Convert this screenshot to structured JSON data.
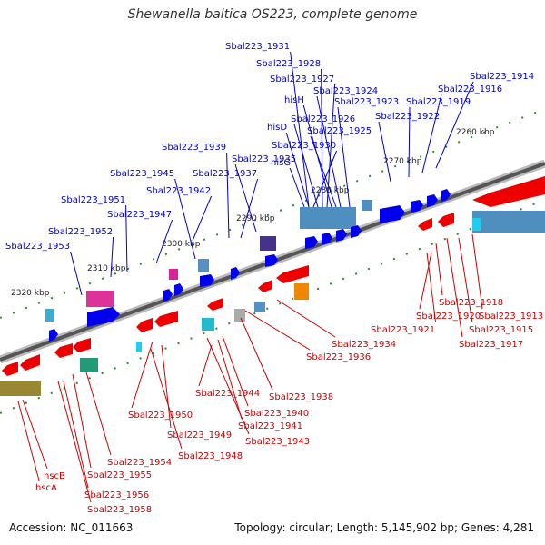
{
  "title": "Shewanella baltica OS223, complete genome",
  "footer": {
    "accession": "Accession: NC_011663",
    "summary": "Topology: circular; Length: 5,145,902 bp; Genes: 4,281"
  },
  "scale_labels": [
    "2260 kbp",
    "2270 kbp",
    "2280 kbp",
    "2290 kbp",
    "2300 kbp",
    "2310 kbp",
    "2320 kbp"
  ],
  "colors": {
    "forward_label": "#0000cc",
    "reverse_label": "#cc0000",
    "forward_gene": "#0000ee",
    "reverse_gene": "#ee0000",
    "backbone": "#555555",
    "tick": "#338833"
  },
  "forward_genes": [
    "Sbal223_1931",
    "Sbal223_1928",
    "Sbal223_1927",
    "hisH",
    "Sbal223_1924",
    "Sbal223_1923",
    "Sbal223_1926",
    "hisD",
    "Sbal223_1925",
    "Sbal223_1922",
    "Sbal223_1919",
    "Sbal223_1916",
    "Sbal223_1914",
    "Sbal223_1930",
    "hisG",
    "Sbal223_1939",
    "Sbal223_1935",
    "Sbal223_1937",
    "Sbal223_1945",
    "Sbal223_1942",
    "Sbal223_1951",
    "Sbal223_1947",
    "Sbal223_1952",
    "Sbal223_1953"
  ],
  "reverse_genes": [
    "Sbal223_1918",
    "Sbal223_1913",
    "Sbal223_1920",
    "Sbal223_1915",
    "Sbal223_1921",
    "Sbal223_1917",
    "Sbal223_1934",
    "Sbal223_1936",
    "Sbal223_1944",
    "Sbal223_1938",
    "Sbal223_1950",
    "Sbal223_1940",
    "Sbal223_1941",
    "Sbal223_1949",
    "Sbal223_1943",
    "Sbal223_1948",
    "Sbal223_1954",
    "Sbal223_1955",
    "hscB",
    "hscA",
    "Sbal223_1956",
    "Sbal223_1958"
  ]
}
